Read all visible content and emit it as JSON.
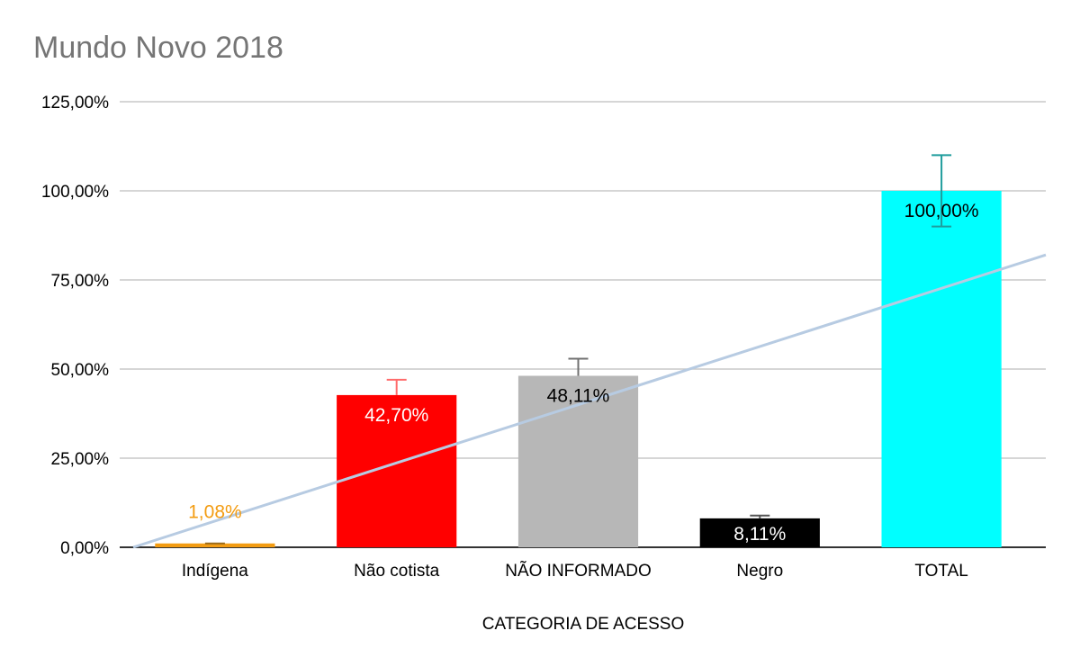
{
  "chart_data": {
    "type": "bar",
    "title": "Mundo Novo 2018",
    "xlabel": "CATEGORIA DE ACESSO",
    "ylabel": "",
    "ylim": [
      0,
      125
    ],
    "yticks": [
      0,
      25,
      50,
      75,
      100,
      125
    ],
    "ytick_labels": [
      "0,00%",
      "25,00%",
      "50,00%",
      "75,00%",
      "100,00%",
      "125,00%"
    ],
    "grid": true,
    "categories": [
      "Indígena",
      "Não cotista",
      "NÃO INFORMADO",
      "Negro",
      "TOTAL"
    ],
    "values": [
      1.08,
      42.7,
      48.11,
      8.11,
      100.0
    ],
    "data_labels": [
      "1,08%",
      "42,70%",
      "48,11%",
      "8,11%",
      "100,00%"
    ],
    "bar_colors": [
      "#f39c12",
      "#ff0000",
      "#b7b7b7",
      "#000000",
      "#00ffff"
    ],
    "label_colors": [
      "#f39c12",
      "#ffffff",
      "#000000",
      "#ffffff",
      "#000000"
    ],
    "error_bars": [
      {
        "low": 1.08,
        "high": 1.08,
        "color": "#9a6a1a"
      },
      {
        "low": 42.7,
        "high": 47.0,
        "color": "#ff6b6b"
      },
      {
        "low": 48.11,
        "high": 52.9,
        "color": "#707070"
      },
      {
        "low": 8.11,
        "high": 8.9,
        "color": "#555555"
      },
      {
        "low": 90.0,
        "high": 110.0,
        "color": "#1f9c9c"
      }
    ],
    "trendline": {
      "type": "linear",
      "color": "#b7cbe2"
    }
  }
}
